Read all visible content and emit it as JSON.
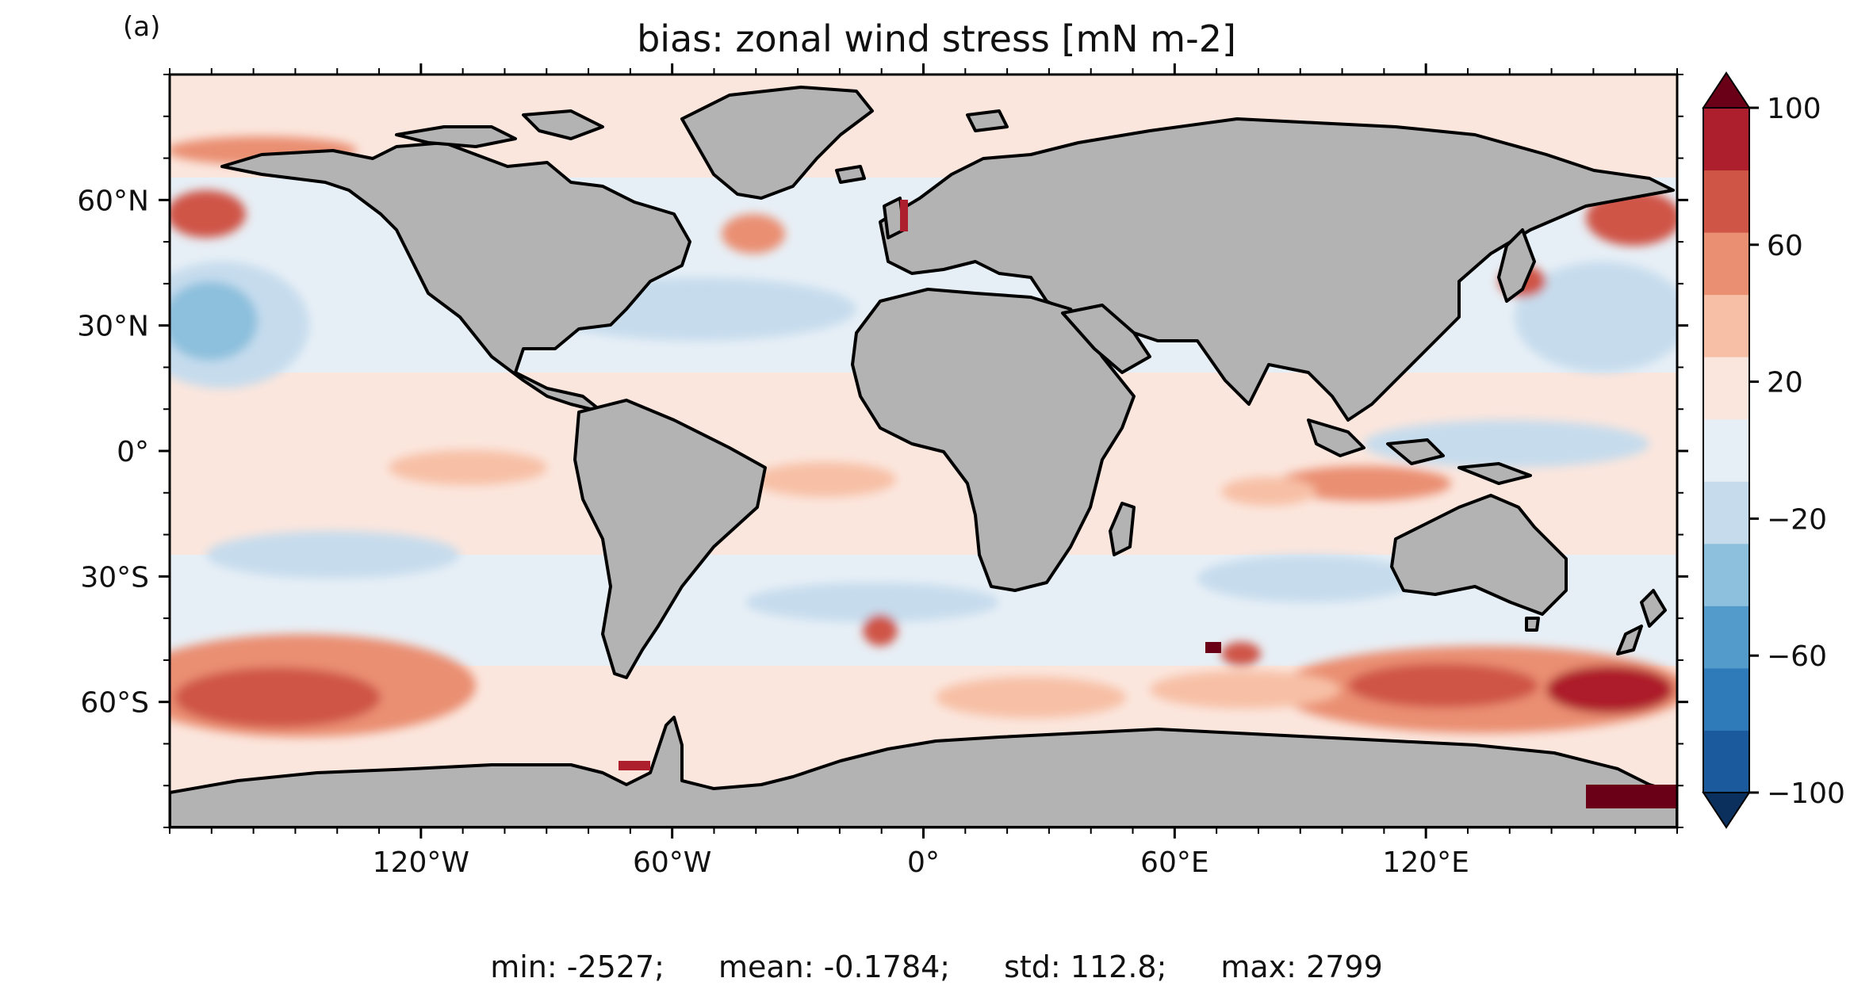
{
  "panel_label": "(a)",
  "title": "bias: zonal wind stress [mN m-2]",
  "map": {
    "projection": "PlateCarree",
    "lon_range": [
      -180,
      180
    ],
    "lat_range": [
      -90,
      90
    ],
    "land_color": "#b3b3b3",
    "coastline_color": "#000000",
    "lon_ticks": [
      {
        "value": -120,
        "label": "120°W"
      },
      {
        "value": -60,
        "label": "60°W"
      },
      {
        "value": 0,
        "label": "0°"
      },
      {
        "value": 60,
        "label": "60°E"
      },
      {
        "value": 120,
        "label": "120°E"
      }
    ],
    "lat_ticks": [
      {
        "value": 60,
        "label": "60°N"
      },
      {
        "value": 30,
        "label": "30°N"
      },
      {
        "value": 0,
        "label": "0°"
      },
      {
        "value": -30,
        "label": "30°S"
      },
      {
        "value": -60,
        "label": "60°S"
      }
    ]
  },
  "colorbar": {
    "cmap": "RdBu_r",
    "extend": "both",
    "levels": [
      -100,
      -80,
      -60,
      -40,
      -20,
      0,
      20,
      40,
      60,
      80,
      100
    ],
    "colors": [
      "#1b5a9c",
      "#2f7ab9",
      "#529bcb",
      "#8cc0dd",
      "#c6dced",
      "#e7eff6",
      "#fbe6dd",
      "#f7c0a6",
      "#ea8f72",
      "#cf5546",
      "#ad1f2c"
    ],
    "under_color": "#0b305e",
    "over_color": "#6a0018",
    "tick_labels": [
      {
        "value": 100,
        "label": "100"
      },
      {
        "value": 60,
        "label": "60"
      },
      {
        "value": 20,
        "label": "20"
      },
      {
        "value": -20,
        "label": "−20"
      },
      {
        "value": -60,
        "label": "−60"
      },
      {
        "value": -100,
        "label": "−100"
      }
    ]
  },
  "stats": {
    "min": "min: -2527;",
    "mean": "mean: -0.1784;",
    "std": "std: 112.8;",
    "max": "max: 2799"
  }
}
